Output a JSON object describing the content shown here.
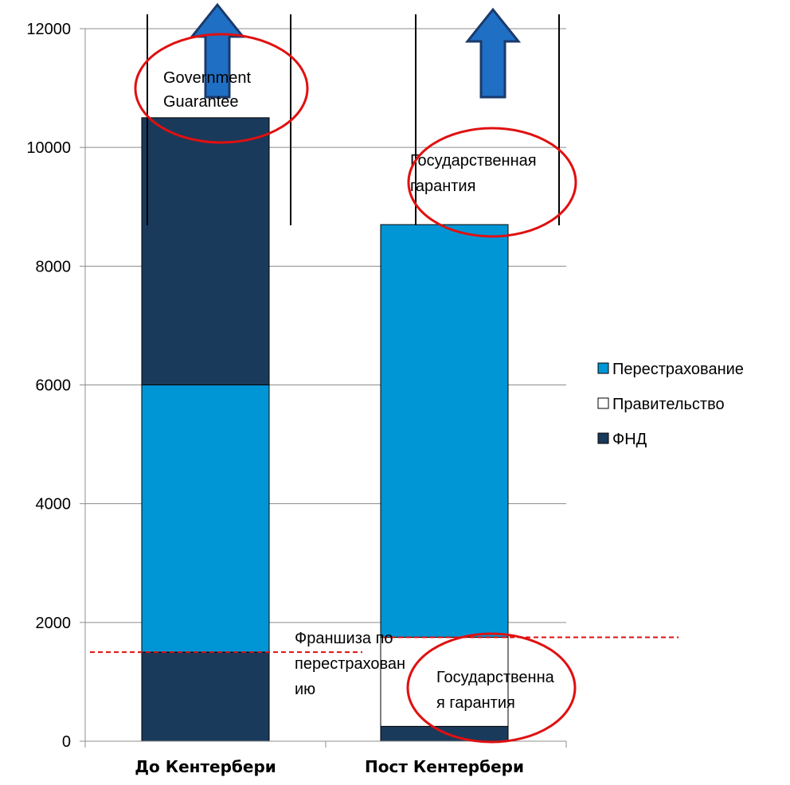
{
  "chart_data": {
    "type": "bar",
    "stacked": true,
    "categories": [
      "До Кентербери",
      "Пост Кентербери"
    ],
    "ylim": [
      0,
      12000
    ],
    "yticks": [
      0,
      2000,
      4000,
      6000,
      8000,
      10000,
      12000
    ],
    "grid": true,
    "legend_position": "right",
    "series": [
      {
        "name": "ФНД",
        "color": "#1a3a5c",
        "values": [
          1500,
          250
        ]
      },
      {
        "name": "Правительство",
        "color": "#ffffff",
        "values": [
          0,
          1500
        ]
      },
      {
        "name": "Перестрахование",
        "color": "#0096d6",
        "values": [
          4500,
          6950
        ]
      },
      {
        "name": "",
        "color": "#1a3a5c",
        "values": [
          4500,
          0
        ]
      }
    ],
    "legend_order": [
      "Перестрахование",
      "Правительство",
      "ФНД"
    ],
    "annotations": {
      "gov_guarantee_en": [
        "Government",
        "Guarantee"
      ],
      "gov_guarantee_ru_top": [
        "Государственная",
        "гарантия"
      ],
      "gov_guarantee_ru_bottom": [
        "Государственна",
        "я гарантия"
      ],
      "reinsurance_deductible": [
        "Франшиза по",
        "перестрахован",
        "ию"
      ]
    },
    "deductible_levels": [
      1500,
      1750
    ],
    "arrow_color": "#1f6fc5",
    "circle_color": "#e01010"
  }
}
